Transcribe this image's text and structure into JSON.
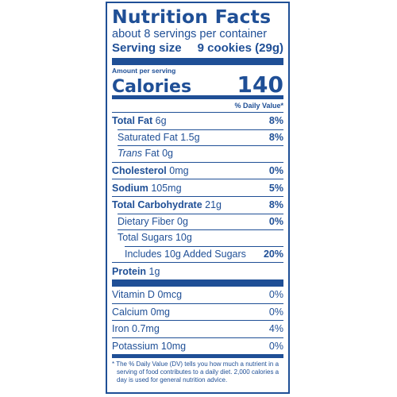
{
  "label": {
    "title": "Nutrition Facts",
    "servings_per_container": "about 8 servings per container",
    "serving_size_label": "Serving size",
    "serving_size_value": "9 cookies (29g)",
    "amount_per_serving": "Amount per serving",
    "calories_label": "Calories",
    "calories_value": "140",
    "daily_value_header": "% Daily Value*",
    "nutrients": [
      {
        "name": "Total Fat",
        "amount": "6g",
        "dv": "8%"
      },
      {
        "name": "Saturated Fat",
        "amount": "1.5g",
        "dv": "8%"
      },
      {
        "name_italic": "Trans",
        "name": "Fat",
        "amount": "0g",
        "dv": ""
      },
      {
        "name": "Cholesterol",
        "amount": "0mg",
        "dv": "0%"
      },
      {
        "name": "Sodium",
        "amount": "105mg",
        "dv": "5%"
      },
      {
        "name": "Total Carbohydrate",
        "amount": "21g",
        "dv": "8%"
      },
      {
        "name": "Dietary Fiber",
        "amount": "0g",
        "dv": "0%"
      },
      {
        "name": "Total Sugars",
        "amount": "10g",
        "dv": ""
      },
      {
        "name": "Includes 10g Added Sugars",
        "amount": "",
        "dv": "20%"
      },
      {
        "name": "Protein",
        "amount": "1g",
        "dv": ""
      }
    ],
    "vitamins": [
      {
        "name": "Vitamin D",
        "amount": "0mcg",
        "dv": "0%"
      },
      {
        "name": "Calcium",
        "amount": "0mg",
        "dv": "0%"
      },
      {
        "name": "Iron",
        "amount": "0.7mg",
        "dv": "4%"
      },
      {
        "name": "Potassium",
        "amount": "10mg",
        "dv": "0%"
      }
    ],
    "footnote": "* The % Daily Value (DV) tells you how much a nutrient in a serving of food contributes to a daily diet. 2,000 calories a day is used for general nutrition advice.",
    "color": "#1f4f96"
  }
}
